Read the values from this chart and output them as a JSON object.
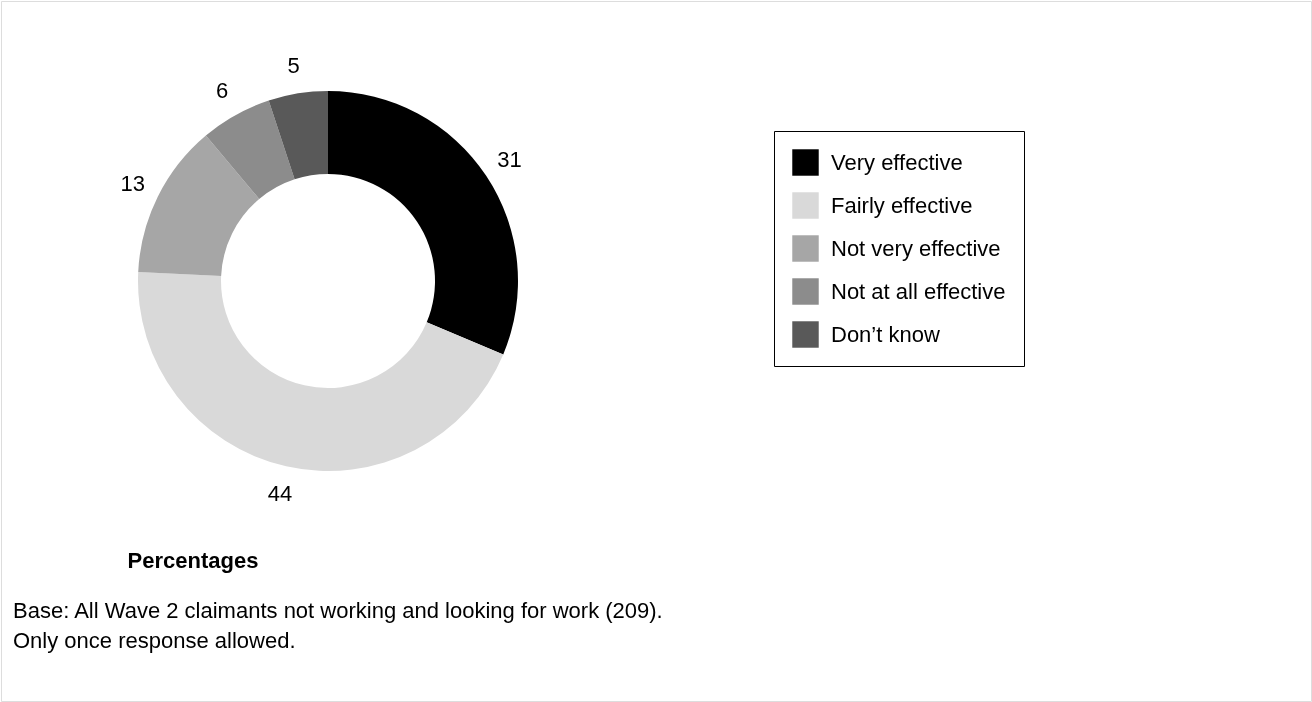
{
  "chart_data": {
    "type": "donut",
    "title": "Percentages",
    "categories": [
      "Very effective",
      "Fairly effective",
      "Not very effective",
      "Not at all effective",
      "Don’t know"
    ],
    "values": [
      31,
      44,
      13,
      6,
      5
    ],
    "colors": [
      "#000000",
      "#d9d9d9",
      "#a6a6a6",
      "#8c8c8c",
      "#595959"
    ],
    "data_labels": true,
    "legend": "right",
    "annotations": [
      "Base: All Wave 2 claimants not working and looking for work (209).",
      "Only once response allowed."
    ]
  }
}
